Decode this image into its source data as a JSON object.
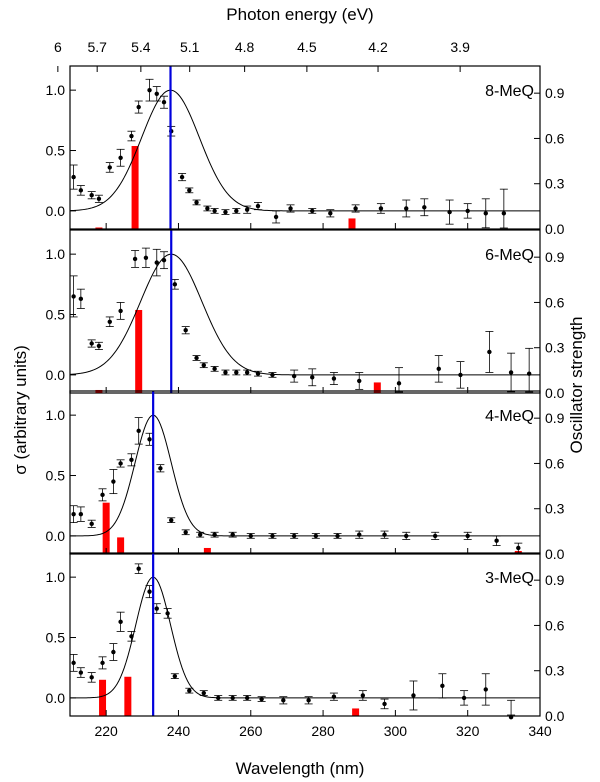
{
  "chart_data": {
    "type": "scatter",
    "figure": {
      "top_axis_title": "Photon energy (eV)",
      "top_ticks": [
        6,
        5.7,
        5.4,
        5.1,
        4.8,
        4.5,
        4.2,
        3.9
      ],
      "top_tick_labels": [
        "6",
        "5.7",
        "5.4",
        "5.1",
        "4.8",
        "4.5",
        "4.2",
        "3.9"
      ],
      "xlabel": "Wavelength (nm)",
      "xlim": [
        210,
        340
      ],
      "x_ticks": [
        220,
        240,
        260,
        280,
        300,
        320,
        340
      ],
      "x_tick_labels": [
        "220",
        "240",
        "260",
        "280",
        "300",
        "320",
        "340"
      ],
      "ylabel": "σ (arbitrary units)",
      "ylabel_right": "Oscillator strength",
      "ylim": [
        -0.15,
        1.2
      ],
      "y_ticks": [
        0.0,
        0.5,
        1.0
      ],
      "y_tick_labels": [
        "0.0",
        "0.5",
        "1.0"
      ],
      "ylim_right": [
        0,
        1.08
      ],
      "y_right_ticks": [
        0.0,
        0.3,
        0.6,
        0.9
      ],
      "y_right_tick_labels": [
        "0.0",
        "0.3",
        "0.6",
        "0.9"
      ]
    },
    "panels": [
      {
        "label": "8-MeQ",
        "peak_nm": 237.8,
        "sigma_nm": 8.0,
        "points": [
          [
            211,
            0.28,
            0.1
          ],
          [
            213,
            0.17,
            0.04
          ],
          [
            216,
            0.13,
            0.03
          ],
          [
            218,
            0.1,
            0.03
          ],
          [
            221,
            0.36,
            0.04
          ],
          [
            224,
            0.44,
            0.07
          ],
          [
            227,
            0.62,
            0.04
          ],
          [
            229,
            0.86,
            0.05
          ],
          [
            232,
            1.0,
            0.09
          ],
          [
            234,
            0.97,
            0.06
          ],
          [
            236,
            0.9,
            0.05
          ],
          [
            238,
            0.66,
            0.04
          ],
          [
            241,
            0.28,
            0.03
          ],
          [
            243,
            0.17,
            0.02
          ],
          [
            245,
            0.07,
            0.02
          ],
          [
            248,
            0.02,
            0.02
          ],
          [
            250,
            0.0,
            0.02
          ],
          [
            253,
            -0.01,
            0.02
          ],
          [
            256,
            0.0,
            0.02
          ],
          [
            259,
            0.01,
            0.03
          ],
          [
            262,
            0.04,
            0.03
          ],
          [
            267,
            -0.05,
            0.05
          ],
          [
            271,
            0.02,
            0.03
          ],
          [
            277,
            0.0,
            0.02
          ],
          [
            282,
            -0.02,
            0.03
          ],
          [
            289,
            0.02,
            0.03
          ],
          [
            296,
            0.02,
            0.04
          ],
          [
            303,
            0.02,
            0.07
          ],
          [
            308,
            0.03,
            0.07
          ],
          [
            315,
            -0.01,
            0.1
          ],
          [
            320,
            0.0,
            0.06
          ],
          [
            325,
            -0.02,
            0.12
          ],
          [
            330,
            -0.02,
            0.2
          ]
        ],
        "bars": [
          [
            218,
            0.01
          ],
          [
            228,
            0.55
          ],
          [
            288,
            0.07
          ]
        ]
      },
      {
        "label": "6-MeQ",
        "peak_nm": 238.0,
        "sigma_nm": 8.5,
        "points": [
          [
            211,
            0.65,
            0.17
          ],
          [
            213,
            0.63,
            0.08
          ],
          [
            216,
            0.26,
            0.03
          ],
          [
            218,
            0.24,
            0.03
          ],
          [
            221,
            0.44,
            0.04
          ],
          [
            224,
            0.53,
            0.07
          ],
          [
            228,
            0.96,
            0.07
          ],
          [
            231,
            0.97,
            0.08
          ],
          [
            234,
            0.93,
            0.11
          ],
          [
            236,
            0.95,
            0.07
          ],
          [
            239,
            0.75,
            0.04
          ],
          [
            242,
            0.37,
            0.03
          ],
          [
            245,
            0.14,
            0.02
          ],
          [
            247,
            0.08,
            0.02
          ],
          [
            250,
            0.05,
            0.02
          ],
          [
            253,
            0.02,
            0.02
          ],
          [
            256,
            0.02,
            0.02
          ],
          [
            259,
            0.02,
            0.02
          ],
          [
            262,
            0.01,
            0.02
          ],
          [
            266,
            0.0,
            0.02
          ],
          [
            272,
            -0.01,
            0.05
          ],
          [
            277,
            -0.02,
            0.07
          ],
          [
            283,
            -0.03,
            0.05
          ],
          [
            290,
            -0.05,
            0.07
          ],
          [
            301,
            -0.07,
            0.13
          ],
          [
            312,
            0.05,
            0.11
          ],
          [
            318,
            0.0,
            0.11
          ],
          [
            326,
            0.19,
            0.17
          ],
          [
            332,
            0.02,
            0.16
          ],
          [
            337,
            0.01,
            0.21
          ]
        ],
        "bars": [
          [
            218,
            0.02
          ],
          [
            229,
            0.55
          ],
          [
            295,
            0.07
          ]
        ]
      },
      {
        "label": "4-MeQ",
        "peak_nm": 233.0,
        "sigma_nm": 5.0,
        "points": [
          [
            211,
            0.18,
            0.07
          ],
          [
            213,
            0.18,
            0.06
          ],
          [
            216,
            0.1,
            0.03
          ],
          [
            219,
            0.34,
            0.05
          ],
          [
            222,
            0.45,
            0.1
          ],
          [
            224,
            0.6,
            0.03
          ],
          [
            227,
            0.63,
            0.05
          ],
          [
            229,
            0.87,
            0.11
          ],
          [
            232,
            0.8,
            0.05
          ],
          [
            235,
            0.56,
            0.03
          ],
          [
            238,
            0.13,
            0.02
          ],
          [
            242,
            0.03,
            0.02
          ],
          [
            246,
            0.01,
            0.02
          ],
          [
            250,
            0.01,
            0.02
          ],
          [
            255,
            0.01,
            0.02
          ],
          [
            260,
            0.0,
            0.02
          ],
          [
            266,
            0.0,
            0.02
          ],
          [
            272,
            0.0,
            0.02
          ],
          [
            278,
            0.0,
            0.02
          ],
          [
            284,
            0.0,
            0.02
          ],
          [
            290,
            0.01,
            0.03
          ],
          [
            297,
            0.01,
            0.03
          ],
          [
            303,
            0.0,
            0.03
          ],
          [
            311,
            0.0,
            0.03
          ],
          [
            320,
            0.0,
            0.03
          ],
          [
            328,
            -0.04,
            0.04
          ],
          [
            334,
            -0.1,
            0.04
          ]
        ],
        "bars": [
          [
            220,
            0.34
          ],
          [
            224,
            0.11
          ],
          [
            248,
            0.04
          ],
          [
            334,
            0.02
          ]
        ]
      },
      {
        "label": "3-MeQ",
        "peak_nm": 233.0,
        "sigma_nm": 4.8,
        "points": [
          [
            211,
            0.29,
            0.07
          ],
          [
            213,
            0.21,
            0.04
          ],
          [
            216,
            0.17,
            0.04
          ],
          [
            219,
            0.29,
            0.05
          ],
          [
            222,
            0.38,
            0.07
          ],
          [
            224,
            0.63,
            0.08
          ],
          [
            227,
            0.51,
            0.04
          ],
          [
            229,
            1.07,
            0.04
          ],
          [
            232,
            0.88,
            0.05
          ],
          [
            234,
            0.74,
            0.04
          ],
          [
            237,
            0.7,
            0.04
          ],
          [
            239,
            0.18,
            0.02
          ],
          [
            243,
            0.06,
            0.02
          ],
          [
            247,
            0.04,
            0.02
          ],
          [
            251,
            0.0,
            0.02
          ],
          [
            255,
            0.0,
            0.02
          ],
          [
            259,
            0.0,
            0.02
          ],
          [
            263,
            -0.01,
            0.02
          ],
          [
            269,
            -0.02,
            0.03
          ],
          [
            276,
            -0.02,
            0.03
          ],
          [
            283,
            0.01,
            0.03
          ],
          [
            291,
            0.02,
            0.04
          ],
          [
            297,
            -0.05,
            0.04
          ],
          [
            305,
            0.02,
            0.12
          ],
          [
            313,
            0.1,
            0.1
          ],
          [
            319,
            0.0,
            0.06
          ],
          [
            325,
            0.07,
            0.13
          ],
          [
            332,
            -0.16,
            0.14
          ]
        ],
        "bars": [
          [
            219,
            0.24
          ],
          [
            226,
            0.26
          ],
          [
            289,
            0.05
          ]
        ]
      }
    ]
  }
}
